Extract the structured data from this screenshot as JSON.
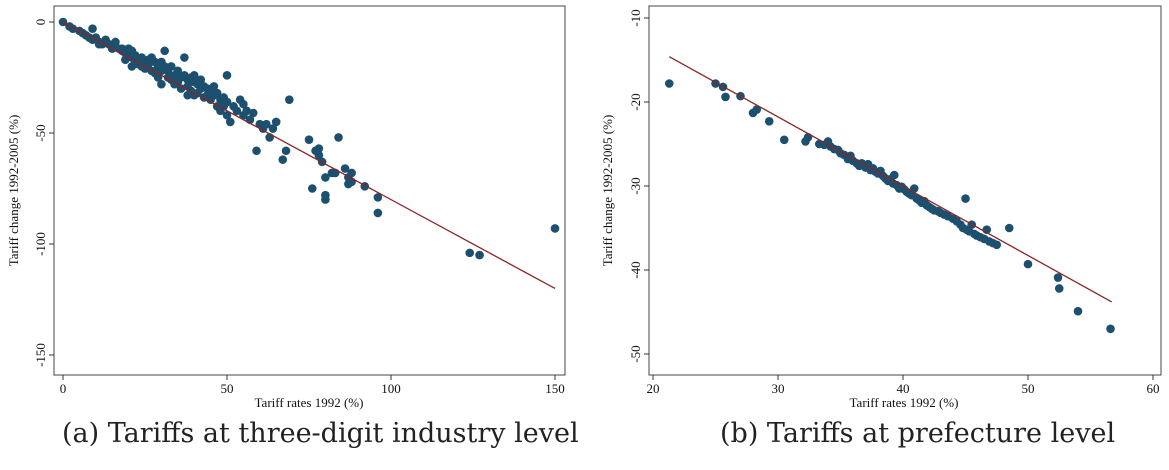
{
  "chart_data": [
    {
      "type": "scatter",
      "title": "",
      "caption": "(a) Tariffs at three-digit industry level",
      "xlabel": "Tariff rates 1992 (%)",
      "ylabel": "Tariff change 1992-2005 (%)",
      "xlim": [
        0,
        150
      ],
      "ylim": [
        -150,
        0
      ],
      "xticks": [
        "0",
        "50",
        "100",
        "150"
      ],
      "yticks": [
        "0",
        "-50",
        "-100",
        "-150"
      ],
      "xtick_values": [
        0,
        50,
        100,
        150
      ],
      "ytick_values": [
        0,
        -50,
        -100,
        -150
      ],
      "grid": false,
      "fit_line": {
        "x": [
          0,
          150
        ],
        "y": [
          0,
          -120
        ]
      },
      "marker_color": "#1d4f6e",
      "line_color": "#8b2525",
      "points": [
        [
          0,
          0
        ],
        [
          2,
          -2
        ],
        [
          3,
          -3
        ],
        [
          5,
          -4
        ],
        [
          6,
          -5
        ],
        [
          7,
          -6
        ],
        [
          8,
          -7
        ],
        [
          9,
          -3
        ],
        [
          9,
          -8
        ],
        [
          10,
          -7
        ],
        [
          11,
          -9
        ],
        [
          11,
          -10
        ],
        [
          12,
          -10
        ],
        [
          13,
          -8
        ],
        [
          14,
          -10
        ],
        [
          15,
          -11
        ],
        [
          15,
          -12
        ],
        [
          16,
          -9
        ],
        [
          17,
          -12
        ],
        [
          18,
          -13
        ],
        [
          18,
          -12
        ],
        [
          19,
          -14
        ],
        [
          19,
          -17
        ],
        [
          20,
          -12
        ],
        [
          20,
          -15
        ],
        [
          21,
          -13
        ],
        [
          21,
          -16
        ],
        [
          21,
          -20
        ],
        [
          22,
          -15
        ],
        [
          22,
          -18
        ],
        [
          23,
          -17
        ],
        [
          23,
          -19
        ],
        [
          24,
          -16
        ],
        [
          24,
          -20
        ],
        [
          25,
          -18
        ],
        [
          25,
          -21
        ],
        [
          26,
          -17
        ],
        [
          26,
          -19
        ],
        [
          27,
          -16
        ],
        [
          27,
          -22
        ],
        [
          28,
          -18
        ],
        [
          28,
          -23
        ],
        [
          29,
          -20
        ],
        [
          29,
          -25
        ],
        [
          30,
          -22
        ],
        [
          30,
          -28
        ],
        [
          30,
          -18
        ],
        [
          31,
          -13
        ],
        [
          31,
          -20
        ],
        [
          32,
          -22
        ],
        [
          32,
          -25
        ],
        [
          33,
          -20
        ],
        [
          33,
          -26
        ],
        [
          34,
          -24
        ],
        [
          34,
          -28
        ],
        [
          35,
          -22
        ],
        [
          35,
          -27
        ],
        [
          36,
          -25
        ],
        [
          36,
          -30
        ],
        [
          37,
          -16
        ],
        [
          37,
          -24
        ],
        [
          38,
          -26
        ],
        [
          38,
          -29
        ],
        [
          38,
          -33
        ],
        [
          39,
          -25
        ],
        [
          39,
          -31
        ],
        [
          40,
          -24
        ],
        [
          40,
          -27
        ],
        [
          40,
          -33
        ],
        [
          41,
          -28
        ],
        [
          41,
          -32
        ],
        [
          42,
          -26
        ],
        [
          42,
          -30
        ],
        [
          43,
          -29
        ],
        [
          43,
          -34
        ],
        [
          44,
          -30
        ],
        [
          44,
          -33
        ],
        [
          45,
          -31
        ],
        [
          45,
          -35
        ],
        [
          46,
          -29
        ],
        [
          46,
          -33
        ],
        [
          47,
          -38
        ],
        [
          47,
          -32
        ],
        [
          48,
          -35
        ],
        [
          48,
          -40
        ],
        [
          49,
          -34
        ],
        [
          49,
          -38
        ],
        [
          50,
          -24
        ],
        [
          50,
          -36
        ],
        [
          50,
          -42
        ],
        [
          51,
          -45
        ],
        [
          52,
          -38
        ],
        [
          53,
          -40
        ],
        [
          54,
          -35
        ],
        [
          55,
          -37
        ],
        [
          55,
          -42
        ],
        [
          56,
          -40
        ],
        [
          57,
          -44
        ],
        [
          58,
          -41
        ],
        [
          59,
          -58
        ],
        [
          60,
          -46
        ],
        [
          61,
          -48
        ],
        [
          62,
          -46
        ],
        [
          63,
          -52
        ],
        [
          64,
          -48
        ],
        [
          65,
          -45
        ],
        [
          67,
          -62
        ],
        [
          68,
          -58
        ],
        [
          69,
          -35
        ],
        [
          75,
          -53
        ],
        [
          76,
          -75
        ],
        [
          77,
          -58
        ],
        [
          78,
          -57
        ],
        [
          78,
          -60
        ],
        [
          79,
          -63
        ],
        [
          80,
          -70
        ],
        [
          80,
          -78
        ],
        [
          80,
          -80
        ],
        [
          82,
          -68
        ],
        [
          83,
          -68
        ],
        [
          84,
          -52
        ],
        [
          86,
          -66
        ],
        [
          87,
          -70
        ],
        [
          87,
          -73
        ],
        [
          88,
          -72
        ],
        [
          88,
          -68
        ],
        [
          92,
          -74
        ],
        [
          96,
          -86
        ],
        [
          96,
          -79
        ],
        [
          124,
          -104
        ],
        [
          127,
          -105
        ],
        [
          150,
          -93
        ]
      ]
    },
    {
      "type": "scatter",
      "title": "",
      "caption": "(b) Tariffs at prefecture level",
      "xlabel": "Tariff rates 1992 (%)",
      "ylabel": "Tariff change 1992-2005 (%)",
      "xlim": [
        20,
        60
      ],
      "ylim": [
        -50,
        -10
      ],
      "xticks": [
        "20",
        "30",
        "40",
        "50",
        "60"
      ],
      "yticks": [
        "-10",
        "-20",
        "-30",
        "-40",
        "-50"
      ],
      "xtick_values": [
        20,
        30,
        40,
        50,
        60
      ],
      "ytick_values": [
        -10,
        -20,
        -30,
        -40,
        -50
      ],
      "grid": false,
      "fit_line": {
        "x": [
          21.3,
          56.7
        ],
        "y": [
          -14.6,
          -43.8
        ]
      },
      "marker_color": "#1d4f6e",
      "line_color": "#8b2525",
      "points": [
        [
          21.3,
          -17.8
        ],
        [
          25,
          -17.8
        ],
        [
          25.6,
          -18.2
        ],
        [
          25.8,
          -19.4
        ],
        [
          27,
          -19.3
        ],
        [
          28,
          -21.3
        ],
        [
          28.3,
          -20.9
        ],
        [
          29.3,
          -22.3
        ],
        [
          30.5,
          -24.5
        ],
        [
          32.2,
          -24.7
        ],
        [
          32.4,
          -24.2
        ],
        [
          33.3,
          -25
        ],
        [
          33.7,
          -25.1
        ],
        [
          34,
          -24.7
        ],
        [
          34.2,
          -25.3
        ],
        [
          34.5,
          -25.6
        ],
        [
          34.8,
          -25.7
        ],
        [
          35,
          -26.1
        ],
        [
          35.3,
          -26.3
        ],
        [
          35.6,
          -26.8
        ],
        [
          35.8,
          -26.4
        ],
        [
          36,
          -27
        ],
        [
          36.3,
          -27.3
        ],
        [
          36.5,
          -27.6
        ],
        [
          36.7,
          -27.3
        ],
        [
          37,
          -27.8
        ],
        [
          37.2,
          -27.4
        ],
        [
          37.4,
          -28.1
        ],
        [
          37.6,
          -27.9
        ],
        [
          37.8,
          -28.3
        ],
        [
          38,
          -28.5
        ],
        [
          38.2,
          -28.2
        ],
        [
          38.4,
          -28.8
        ],
        [
          38.6,
          -29.1
        ],
        [
          38.8,
          -29.4
        ],
        [
          39,
          -29.2
        ],
        [
          39.2,
          -29.7
        ],
        [
          39.3,
          -28.7
        ],
        [
          39.5,
          -29.9
        ],
        [
          39.7,
          -30.3
        ],
        [
          39.9,
          -30.1
        ],
        [
          40.1,
          -30.4
        ],
        [
          40.3,
          -30.7
        ],
        [
          40.5,
          -30.9
        ],
        [
          40.7,
          -31.1
        ],
        [
          40.9,
          -30.3
        ],
        [
          41.1,
          -31.5
        ],
        [
          41.3,
          -31.7
        ],
        [
          41.5,
          -32
        ],
        [
          41.7,
          -31.8
        ],
        [
          41.9,
          -32.3
        ],
        [
          42.1,
          -32.5
        ],
        [
          42.3,
          -32.7
        ],
        [
          42.5,
          -32.9
        ],
        [
          42.8,
          -33
        ],
        [
          43,
          -33.2
        ],
        [
          43.3,
          -33.4
        ],
        [
          43.6,
          -33.6
        ],
        [
          44,
          -33.9
        ],
        [
          44.3,
          -34.2
        ],
        [
          44.6,
          -34.6
        ],
        [
          44.8,
          -35
        ],
        [
          45,
          -31.5
        ],
        [
          45.1,
          -35.2
        ],
        [
          45.3,
          -35.4
        ],
        [
          45.5,
          -34.6
        ],
        [
          45.7,
          -35.7
        ],
        [
          45.9,
          -35.9
        ],
        [
          46.2,
          -36.1
        ],
        [
          46.5,
          -36.3
        ],
        [
          46.7,
          -35.2
        ],
        [
          46.9,
          -36.6
        ],
        [
          47.2,
          -36.8
        ],
        [
          47.5,
          -37
        ],
        [
          48.5,
          -35
        ],
        [
          50,
          -39.3
        ],
        [
          52.4,
          -40.9
        ],
        [
          52.5,
          -42.2
        ],
        [
          54,
          -44.9
        ],
        [
          56.6,
          -47
        ]
      ]
    }
  ]
}
